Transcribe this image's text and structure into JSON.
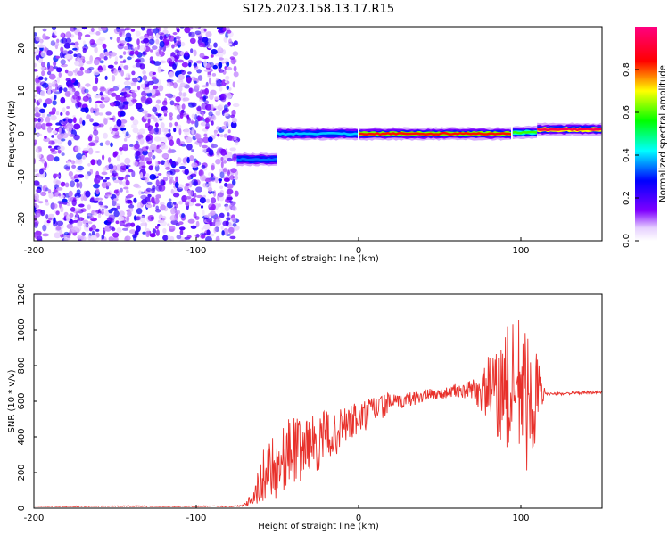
{
  "figure": {
    "title": "S125.2023.158.13.17.R15"
  },
  "chart_data": [
    {
      "type": "heatmap",
      "xlabel": "Height of straight line (km)",
      "ylabel": "Frequency (Hz)",
      "xlim": [
        -200,
        150
      ],
      "ylim": [
        -25,
        25
      ],
      "x_ticks": [
        "-200",
        "-100",
        "0",
        "100"
      ],
      "y_ticks": [
        "-20",
        "-10",
        "0",
        "10",
        "20"
      ],
      "colorbar": {
        "label": "Normalized spectral amplitude",
        "range": [
          0.0,
          1.0
        ],
        "ticks": [
          "0.0",
          "0.2",
          "0.4",
          "0.6",
          "0.8"
        ],
        "colormap": [
          "#ffffff",
          "#8000ff",
          "#0000ff",
          "#00ffff",
          "#00ff00",
          "#ffff00",
          "#ff0000",
          "#ff0080"
        ]
      },
      "regions": [
        {
          "x_range": [
            -200,
            -75
          ],
          "pattern": "broadband noise",
          "amplitude": 0.1
        },
        {
          "x_range": [
            -75,
            -50
          ],
          "frequency_hz": -6,
          "amplitude": 0.35
        },
        {
          "x_range": [
            -50,
            0
          ],
          "frequency_hz": 0,
          "amplitude": 0.4
        },
        {
          "x_range": [
            0,
            95
          ],
          "frequency_hz": 0,
          "amplitude": 0.85
        },
        {
          "x_range": [
            95,
            110
          ],
          "frequency_hz": 0.3,
          "amplitude": 0.6
        },
        {
          "x_range": [
            110,
            150
          ],
          "frequency_hz": 1,
          "amplitude": 0.95
        }
      ],
      "grid": false
    },
    {
      "type": "line",
      "xlabel": "Height of straight line (km)",
      "ylabel": "SNR (10 * v/v)",
      "xlim": [
        -200,
        150
      ],
      "ylim": [
        0,
        1200
      ],
      "x_ticks": [
        "-200",
        "-100",
        "0",
        "100"
      ],
      "y_ticks": [
        "0",
        "200",
        "400",
        "600",
        "800",
        "1000",
        "1200"
      ],
      "color": "#e8302a",
      "series": [
        {
          "x": [
            -200,
            -180,
            -160,
            -140,
            -120,
            -100,
            -90,
            -80,
            -72,
            -65,
            -60,
            -55,
            -50,
            -45,
            -40,
            -35,
            -30,
            -25,
            -20,
            -15,
            -10,
            -5,
            0,
            5,
            10,
            15,
            20,
            25,
            30,
            35,
            40,
            45,
            50,
            55,
            60,
            65,
            70,
            75,
            80,
            85,
            90,
            95,
            100,
            105,
            110,
            115,
            120,
            130,
            140,
            150
          ],
          "y": [
            12,
            10,
            11,
            12,
            10,
            11,
            12,
            10,
            14,
            60,
            150,
            260,
            230,
            300,
            340,
            320,
            380,
            350,
            420,
            400,
            460,
            480,
            500,
            520,
            560,
            570,
            600,
            590,
            610,
            620,
            630,
            640,
            640,
            650,
            660,
            650,
            670,
            640,
            680,
            620,
            700,
            600,
            700,
            560,
            640,
            645,
            640,
            645,
            648,
            650
          ],
          "amplitude": [
            1,
            3,
            2,
            3,
            2,
            3,
            2,
            3,
            4,
            40,
            140,
            170,
            200,
            180,
            200,
            170,
            160,
            150,
            140,
            120,
            110,
            110,
            100,
            90,
            80,
            70,
            50,
            40,
            40,
            40,
            40,
            30,
            30,
            30,
            40,
            40,
            60,
            100,
            180,
            250,
            330,
            450,
            420,
            380,
            250,
            8,
            8,
            8,
            8,
            8
          ]
        }
      ],
      "grid": false
    }
  ]
}
